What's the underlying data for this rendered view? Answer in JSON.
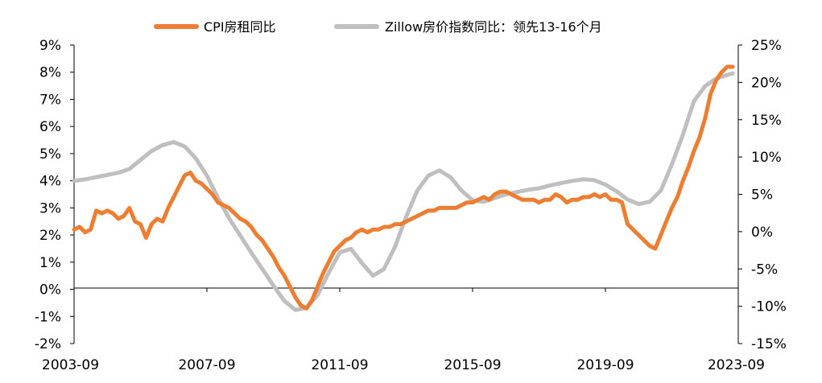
{
  "chart_data": {
    "type": "line",
    "legend_position": "top",
    "grid": false,
    "colors": {
      "rent": "#ED7D31",
      "zillow": "#BFBFBF",
      "axis": "#000000"
    },
    "x_tick_labels": [
      "2003-09",
      "2007-09",
      "2011-09",
      "2015-09",
      "2019-09",
      "2023-09"
    ],
    "xlim": [
      "2003-09",
      "2023-09"
    ],
    "left_axis": {
      "ylim": [
        -2,
        9
      ],
      "ticks": [
        -2,
        -1,
        0,
        1,
        2,
        3,
        4,
        5,
        6,
        7,
        8,
        9
      ],
      "tick_labels": [
        "-2%",
        "-1%",
        "0%",
        "1%",
        "2%",
        "3%",
        "4%",
        "5%",
        "6%",
        "7%",
        "8%",
        "9%"
      ]
    },
    "right_axis": {
      "ylim": [
        -15,
        25
      ],
      "ticks": [
        -15,
        -10,
        -5,
        0,
        5,
        10,
        15,
        20,
        25
      ],
      "tick_labels": [
        "-15%",
        "-10%",
        "-5%",
        "0%",
        "5%",
        "10%",
        "15%",
        "20%",
        "25%"
      ]
    },
    "series": [
      {
        "name": "CPI房租同比",
        "axis": "left",
        "color": "#ED7D31",
        "points": [
          [
            "2003-09",
            2.2
          ],
          [
            "2003-11",
            2.3
          ],
          [
            "2004-01",
            2.1
          ],
          [
            "2004-03",
            2.2
          ],
          [
            "2004-05",
            2.9
          ],
          [
            "2004-07",
            2.8
          ],
          [
            "2004-09",
            2.9
          ],
          [
            "2004-11",
            2.8
          ],
          [
            "2005-01",
            2.6
          ],
          [
            "2005-03",
            2.7
          ],
          [
            "2005-05",
            3.0
          ],
          [
            "2005-07",
            2.5
          ],
          [
            "2005-09",
            2.4
          ],
          [
            "2005-11",
            1.9
          ],
          [
            "2006-01",
            2.4
          ],
          [
            "2006-03",
            2.6
          ],
          [
            "2006-05",
            2.5
          ],
          [
            "2006-07",
            3.0
          ],
          [
            "2006-09",
            3.4
          ],
          [
            "2006-11",
            3.8
          ],
          [
            "2007-01",
            4.2
          ],
          [
            "2007-03",
            4.3
          ],
          [
            "2007-05",
            4.0
          ],
          [
            "2007-07",
            3.9
          ],
          [
            "2007-09",
            3.7
          ],
          [
            "2007-11",
            3.5
          ],
          [
            "2008-01",
            3.2
          ],
          [
            "2008-03",
            3.1
          ],
          [
            "2008-05",
            3.0
          ],
          [
            "2008-07",
            2.8
          ],
          [
            "2008-09",
            2.6
          ],
          [
            "2008-11",
            2.5
          ],
          [
            "2009-01",
            2.3
          ],
          [
            "2009-03",
            2.0
          ],
          [
            "2009-05",
            1.8
          ],
          [
            "2009-07",
            1.5
          ],
          [
            "2009-09",
            1.2
          ],
          [
            "2009-11",
            0.8
          ],
          [
            "2010-01",
            0.5
          ],
          [
            "2010-03",
            0.1
          ],
          [
            "2010-05",
            -0.3
          ],
          [
            "2010-07",
            -0.6
          ],
          [
            "2010-09",
            -0.7
          ],
          [
            "2010-11",
            -0.4
          ],
          [
            "2011-01",
            0.1
          ],
          [
            "2011-03",
            0.6
          ],
          [
            "2011-05",
            1.0
          ],
          [
            "2011-07",
            1.4
          ],
          [
            "2011-09",
            1.6
          ],
          [
            "2011-11",
            1.8
          ],
          [
            "2012-01",
            1.9
          ],
          [
            "2012-03",
            2.1
          ],
          [
            "2012-05",
            2.2
          ],
          [
            "2012-07",
            2.1
          ],
          [
            "2012-09",
            2.2
          ],
          [
            "2012-11",
            2.2
          ],
          [
            "2013-01",
            2.3
          ],
          [
            "2013-03",
            2.3
          ],
          [
            "2013-05",
            2.4
          ],
          [
            "2013-07",
            2.4
          ],
          [
            "2013-09",
            2.5
          ],
          [
            "2013-11",
            2.6
          ],
          [
            "2014-01",
            2.7
          ],
          [
            "2014-03",
            2.8
          ],
          [
            "2014-05",
            2.9
          ],
          [
            "2014-07",
            2.9
          ],
          [
            "2014-09",
            3.0
          ],
          [
            "2014-11",
            3.0
          ],
          [
            "2015-01",
            3.0
          ],
          [
            "2015-03",
            3.0
          ],
          [
            "2015-05",
            3.1
          ],
          [
            "2015-07",
            3.2
          ],
          [
            "2015-09",
            3.2
          ],
          [
            "2015-11",
            3.3
          ],
          [
            "2016-01",
            3.4
          ],
          [
            "2016-03",
            3.3
          ],
          [
            "2016-05",
            3.5
          ],
          [
            "2016-07",
            3.6
          ],
          [
            "2016-09",
            3.6
          ],
          [
            "2016-11",
            3.5
          ],
          [
            "2017-01",
            3.4
          ],
          [
            "2017-03",
            3.3
          ],
          [
            "2017-05",
            3.3
          ],
          [
            "2017-07",
            3.3
          ],
          [
            "2017-09",
            3.2
          ],
          [
            "2017-11",
            3.3
          ],
          [
            "2018-01",
            3.3
          ],
          [
            "2018-03",
            3.5
          ],
          [
            "2018-05",
            3.4
          ],
          [
            "2018-07",
            3.2
          ],
          [
            "2018-09",
            3.3
          ],
          [
            "2018-11",
            3.3
          ],
          [
            "2019-01",
            3.4
          ],
          [
            "2019-03",
            3.4
          ],
          [
            "2019-05",
            3.5
          ],
          [
            "2019-07",
            3.4
          ],
          [
            "2019-09",
            3.5
          ],
          [
            "2019-11",
            3.3
          ],
          [
            "2020-01",
            3.3
          ],
          [
            "2020-03",
            3.2
          ],
          [
            "2020-05",
            2.4
          ],
          [
            "2020-07",
            2.2
          ],
          [
            "2020-09",
            2.0
          ],
          [
            "2020-11",
            1.8
          ],
          [
            "2021-01",
            1.6
          ],
          [
            "2021-03",
            1.5
          ],
          [
            "2021-05",
            2.0
          ],
          [
            "2021-07",
            2.5
          ],
          [
            "2021-09",
            3.0
          ],
          [
            "2021-11",
            3.4
          ],
          [
            "2022-01",
            4.0
          ],
          [
            "2022-03",
            4.5
          ],
          [
            "2022-05",
            5.1
          ],
          [
            "2022-07",
            5.6
          ],
          [
            "2022-09",
            6.3
          ],
          [
            "2022-11",
            7.2
          ],
          [
            "2023-01",
            7.7
          ],
          [
            "2023-03",
            8.0
          ],
          [
            "2023-05",
            8.2
          ],
          [
            "2023-07",
            8.2
          ]
        ]
      },
      {
        "name": "Zillow房价指数同比：领先13-16个月",
        "axis": "right",
        "color": "#BFBFBF",
        "points": [
          [
            "2003-09",
            6.8
          ],
          [
            "2004-01",
            7.0
          ],
          [
            "2004-05",
            7.3
          ],
          [
            "2004-09",
            7.6
          ],
          [
            "2005-01",
            7.9
          ],
          [
            "2005-05",
            8.4
          ],
          [
            "2005-09",
            9.6
          ],
          [
            "2006-01",
            10.8
          ],
          [
            "2006-05",
            11.6
          ],
          [
            "2006-09",
            12.0
          ],
          [
            "2007-01",
            11.4
          ],
          [
            "2007-05",
            9.8
          ],
          [
            "2007-09",
            7.5
          ],
          [
            "2008-01",
            4.5
          ],
          [
            "2008-05",
            1.8
          ],
          [
            "2008-09",
            -0.5
          ],
          [
            "2009-01",
            -2.8
          ],
          [
            "2009-05",
            -5.0
          ],
          [
            "2009-09",
            -7.2
          ],
          [
            "2010-01",
            -9.3
          ],
          [
            "2010-05",
            -10.5
          ],
          [
            "2010-09",
            -10.2
          ],
          [
            "2011-01",
            -8.5
          ],
          [
            "2011-05",
            -5.5
          ],
          [
            "2011-09",
            -2.8
          ],
          [
            "2012-01",
            -2.3
          ],
          [
            "2012-05",
            -4.2
          ],
          [
            "2012-09",
            -5.9
          ],
          [
            "2013-01",
            -5.0
          ],
          [
            "2013-05",
            -2.0
          ],
          [
            "2013-09",
            2.0
          ],
          [
            "2014-01",
            5.5
          ],
          [
            "2014-05",
            7.5
          ],
          [
            "2014-09",
            8.2
          ],
          [
            "2015-01",
            7.3
          ],
          [
            "2015-05",
            5.5
          ],
          [
            "2015-09",
            4.2
          ],
          [
            "2016-01",
            4.0
          ],
          [
            "2016-05",
            4.5
          ],
          [
            "2016-09",
            5.0
          ],
          [
            "2017-01",
            5.3
          ],
          [
            "2017-05",
            5.6
          ],
          [
            "2017-09",
            5.8
          ],
          [
            "2018-01",
            6.2
          ],
          [
            "2018-05",
            6.5
          ],
          [
            "2018-09",
            6.8
          ],
          [
            "2019-01",
            7.0
          ],
          [
            "2019-05",
            6.9
          ],
          [
            "2019-09",
            6.3
          ],
          [
            "2020-01",
            5.4
          ],
          [
            "2020-05",
            4.3
          ],
          [
            "2020-09",
            3.7
          ],
          [
            "2021-01",
            4.0
          ],
          [
            "2021-05",
            5.5
          ],
          [
            "2021-09",
            9.0
          ],
          [
            "2022-01",
            13.0
          ],
          [
            "2022-05",
            17.5
          ],
          [
            "2022-09",
            19.5
          ],
          [
            "2023-01",
            20.5
          ],
          [
            "2023-05",
            21.0
          ],
          [
            "2023-07",
            21.2
          ]
        ]
      }
    ]
  }
}
